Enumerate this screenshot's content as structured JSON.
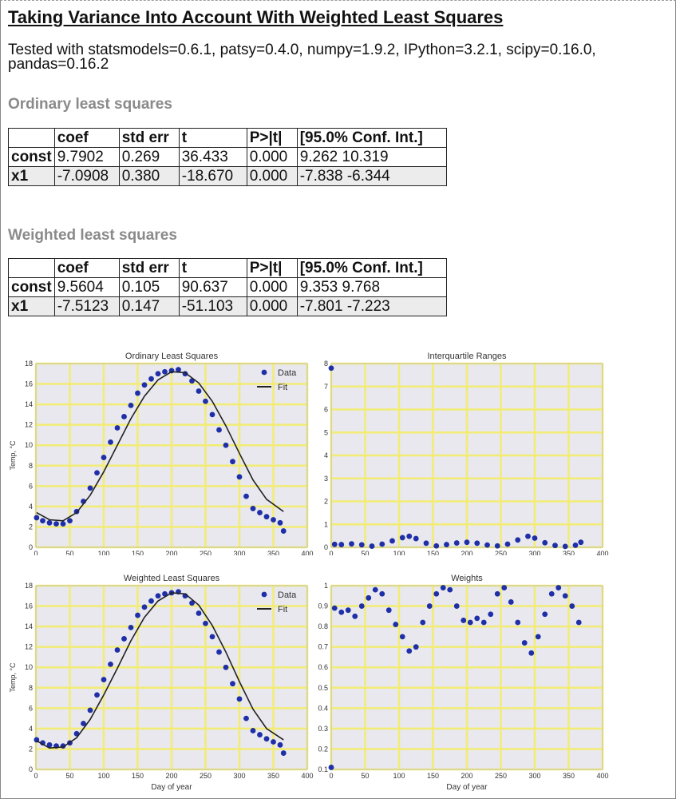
{
  "page": {
    "title": "Taking Variance Into Account With Weighted Least Squares",
    "versions": "Tested with statsmodels=0.6.1, patsy=0.4.0, numpy=1.9.2, IPython=3.2.1, scipy=0.16.0, pandas=0.16.2"
  },
  "tables": [
    {
      "title": "Ordinary least squares",
      "columns": [
        "",
        "coef",
        "std err",
        "t",
        "P>|t|",
        "[95.0% Conf. Int.]"
      ],
      "rows": [
        [
          "const",
          "9.7902",
          "0.269",
          "36.433",
          "0.000",
          "9.262 10.319"
        ],
        [
          "x1",
          "-7.0908",
          "0.380",
          "-18.670",
          "0.000",
          "-7.838 -6.344"
        ]
      ]
    },
    {
      "title": "Weighted least squares",
      "columns": [
        "",
        "coef",
        "std err",
        "t",
        "P>|t|",
        "[95.0% Conf. Int.]"
      ],
      "rows": [
        [
          "const",
          "9.5604",
          "0.105",
          "90.637",
          "0.000",
          "9.353 9.768"
        ],
        [
          "x1",
          "-7.5123",
          "0.147",
          "-51.103",
          "0.000",
          "-7.801 -7.223"
        ]
      ]
    }
  ],
  "colors": {
    "plot_bg": "#e8e8ee",
    "grid": "#f2ec74",
    "data": "#1f2fa8",
    "fit": "#222222",
    "section_gray": "#8a8a8a"
  },
  "chart_data": [
    {
      "type": "scatter",
      "title": "Ordinary Least Squares",
      "xlabel": "Day of year",
      "ylabel": "Temp, °C",
      "xlim": [
        0,
        400
      ],
      "ylim": [
        0,
        18
      ],
      "xticks": [
        0,
        50,
        100,
        150,
        200,
        250,
        300,
        350,
        400
      ],
      "yticks": [
        0,
        2,
        4,
        6,
        8,
        10,
        12,
        14,
        16,
        18
      ],
      "grid": true,
      "legend": "top-right",
      "series": [
        {
          "name": "Data",
          "style": "markers",
          "x": [
            1,
            10,
            20,
            30,
            40,
            50,
            60,
            70,
            80,
            90,
            100,
            110,
            120,
            130,
            140,
            150,
            160,
            170,
            180,
            190,
            200,
            210,
            220,
            230,
            240,
            250,
            260,
            270,
            280,
            290,
            300,
            310,
            320,
            330,
            340,
            350,
            360,
            365
          ],
          "y": [
            2.9,
            2.6,
            2.4,
            2.3,
            2.3,
            2.6,
            3.5,
            4.5,
            5.8,
            7.3,
            8.8,
            10.3,
            11.7,
            12.8,
            13.9,
            15.1,
            15.9,
            16.5,
            17.0,
            17.2,
            17.3,
            17.4,
            17.0,
            16.3,
            15.3,
            14.3,
            13.0,
            11.5,
            10.0,
            8.4,
            6.9,
            5.0,
            3.8,
            3.4,
            3.0,
            2.7,
            2.4,
            1.6
          ]
        },
        {
          "name": "Fit",
          "style": "line",
          "x": [
            1,
            20,
            40,
            60,
            80,
            100,
            120,
            140,
            160,
            180,
            200,
            220,
            240,
            260,
            280,
            300,
            320,
            340,
            365
          ],
          "y": [
            3.4,
            2.7,
            2.6,
            3.4,
            5.1,
            7.4,
            10.0,
            12.6,
            14.8,
            16.4,
            17.2,
            17.1,
            16.1,
            14.3,
            11.9,
            9.2,
            6.6,
            4.7,
            3.5
          ]
        }
      ]
    },
    {
      "type": "scatter",
      "title": "Interquartile Ranges",
      "xlabel": "Day of year",
      "ylabel": "",
      "xlim": [
        0,
        400
      ],
      "ylim": [
        0,
        8
      ],
      "xticks": [
        0,
        50,
        100,
        150,
        200,
        250,
        300,
        350,
        400
      ],
      "yticks": [
        0,
        1,
        2,
        3,
        4,
        5,
        6,
        7,
        8
      ],
      "grid": true,
      "series": [
        {
          "name": "",
          "style": "markers",
          "x": [
            0,
            5,
            15,
            30,
            45,
            60,
            75,
            90,
            105,
            115,
            125,
            140,
            155,
            170,
            185,
            200,
            215,
            230,
            245,
            260,
            275,
            290,
            300,
            315,
            330,
            345,
            360,
            368
          ],
          "y": [
            7.8,
            0.13,
            0.12,
            0.15,
            0.11,
            0.05,
            0.14,
            0.28,
            0.42,
            0.48,
            0.38,
            0.18,
            0.06,
            0.12,
            0.19,
            0.22,
            0.18,
            0.1,
            0.06,
            0.14,
            0.32,
            0.48,
            0.4,
            0.2,
            0.08,
            0.04,
            0.09,
            0.22
          ]
        }
      ]
    },
    {
      "type": "scatter",
      "title": "Weighted Least Squares",
      "xlabel": "Day of year",
      "ylabel": "Temp, °C",
      "xlim": [
        0,
        400
      ],
      "ylim": [
        0,
        18
      ],
      "xticks": [
        0,
        50,
        100,
        150,
        200,
        250,
        300,
        350,
        400
      ],
      "yticks": [
        0,
        2,
        4,
        6,
        8,
        10,
        12,
        14,
        16,
        18
      ],
      "grid": true,
      "legend": "top-right",
      "series": [
        {
          "name": "Data",
          "style": "markers",
          "x": [
            1,
            10,
            20,
            30,
            40,
            50,
            60,
            70,
            80,
            90,
            100,
            110,
            120,
            130,
            140,
            150,
            160,
            170,
            180,
            190,
            200,
            210,
            220,
            230,
            240,
            250,
            260,
            270,
            280,
            290,
            300,
            310,
            320,
            330,
            340,
            350,
            360,
            365
          ],
          "y": [
            2.9,
            2.6,
            2.4,
            2.3,
            2.3,
            2.6,
            3.5,
            4.5,
            5.8,
            7.3,
            8.8,
            10.3,
            11.7,
            12.8,
            13.9,
            15.1,
            15.9,
            16.5,
            17.0,
            17.2,
            17.3,
            17.4,
            17.0,
            16.3,
            15.3,
            14.3,
            13.0,
            11.5,
            10.0,
            8.4,
            6.9,
            5.0,
            3.8,
            3.4,
            3.0,
            2.7,
            2.4,
            1.6
          ]
        },
        {
          "name": "Fit",
          "style": "line",
          "x": [
            1,
            20,
            40,
            60,
            80,
            100,
            120,
            140,
            160,
            180,
            200,
            220,
            240,
            260,
            280,
            300,
            320,
            340,
            365
          ],
          "y": [
            2.8,
            2.1,
            2.2,
            3.1,
            4.9,
            7.3,
            9.9,
            12.6,
            14.9,
            16.5,
            17.3,
            17.2,
            16.1,
            14.1,
            11.5,
            8.6,
            5.9,
            4.0,
            2.9
          ]
        }
      ]
    },
    {
      "type": "scatter",
      "title": "Weights",
      "xlabel": "Day of year",
      "ylabel": "",
      "xlim": [
        0,
        400
      ],
      "ylim": [
        0.1,
        1.0
      ],
      "xticks": [
        0,
        50,
        100,
        150,
        200,
        250,
        300,
        350,
        400
      ],
      "yticks": [
        0.1,
        0.2,
        0.3,
        0.4,
        0.5,
        0.6,
        0.7,
        0.8,
        0.9,
        1.0
      ],
      "grid": true,
      "series": [
        {
          "name": "",
          "style": "markers",
          "x": [
            0,
            5,
            15,
            25,
            35,
            45,
            55,
            65,
            75,
            85,
            95,
            105,
            115,
            125,
            135,
            145,
            155,
            165,
            175,
            185,
            195,
            205,
            215,
            225,
            235,
            245,
            255,
            265,
            275,
            285,
            295,
            305,
            315,
            325,
            335,
            345,
            355,
            365
          ],
          "y": [
            0.11,
            0.89,
            0.87,
            0.88,
            0.85,
            0.9,
            0.94,
            0.98,
            0.96,
            0.88,
            0.81,
            0.75,
            0.68,
            0.7,
            0.82,
            0.9,
            0.96,
            0.99,
            0.98,
            0.9,
            0.83,
            0.82,
            0.84,
            0.82,
            0.86,
            0.96,
            0.99,
            0.92,
            0.82,
            0.72,
            0.67,
            0.75,
            0.86,
            0.96,
            0.99,
            0.95,
            0.9,
            0.82
          ]
        }
      ]
    }
  ]
}
